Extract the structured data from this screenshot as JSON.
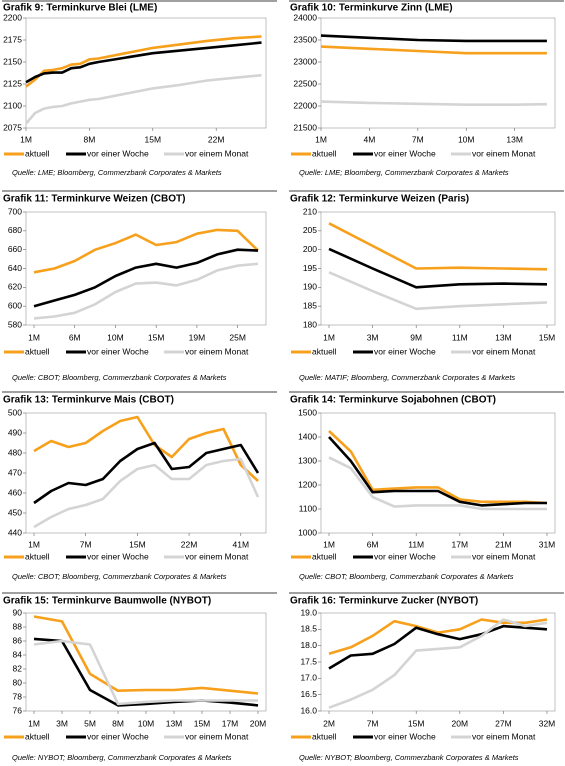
{
  "chart_data": [
    {
      "type": "line",
      "title": "Grafik 9: Terminkurve Blei (LME)",
      "source": "Quelle: LME; Bloomberg, Commerzbank Corporates & Markets",
      "x": [
        1,
        2,
        3,
        4,
        5,
        6,
        7,
        8,
        9,
        12,
        15,
        18,
        21,
        24,
        27
      ],
      "xlim": [
        1,
        27.5
      ],
      "xticks": [
        {
          "value": 1,
          "label": "1M"
        },
        {
          "value": 8,
          "label": "8M"
        },
        {
          "value": 15,
          "label": "15M"
        },
        {
          "value": 22,
          "label": "22M"
        }
      ],
      "ylim": [
        2075,
        2200
      ],
      "yticks": [
        2075,
        2100,
        2125,
        2150,
        2175,
        2200
      ],
      "series": [
        {
          "name": "aktuell",
          "color": "#f7a01c",
          "values": [
            2122,
            2130,
            2140,
            2141,
            2143,
            2147,
            2148,
            2153,
            2154,
            2160,
            2166,
            2170,
            2174,
            2177,
            2179
          ]
        },
        {
          "name": "vor einer Woche",
          "color": "#000000",
          "values": [
            2127,
            2133,
            2137,
            2138,
            2138,
            2143,
            2144,
            2148,
            2150,
            2155,
            2160,
            2163,
            2166,
            2169,
            2172
          ]
        },
        {
          "name": "vor einem Monat",
          "color": "#d4d4d4",
          "values": [
            2080,
            2092,
            2097,
            2099,
            2100,
            2103,
            2105,
            2107,
            2108,
            2114,
            2120,
            2124,
            2129,
            2132,
            2135
          ]
        }
      ]
    },
    {
      "type": "line",
      "title": "Grafik 10: Terminkurve Zinn (LME)",
      "source": "Quelle: LME; Bloomberg, Commerzbank Corporates & Markets",
      "x": [
        1,
        4,
        7,
        10,
        13,
        15
      ],
      "xlim": [
        1,
        15.5
      ],
      "xticks": [
        {
          "value": 1,
          "label": "1M"
        },
        {
          "value": 4,
          "label": "4M"
        },
        {
          "value": 7,
          "label": "7M"
        },
        {
          "value": 10,
          "label": "10M"
        },
        {
          "value": 13,
          "label": "13M"
        }
      ],
      "ylim": [
        21500,
        24000
      ],
      "yticks": [
        21500,
        22000,
        22500,
        23000,
        23500,
        24000
      ],
      "series": [
        {
          "name": "aktuell",
          "color": "#f7a01c",
          "values": [
            23350,
            23300,
            23250,
            23200,
            23200,
            23200
          ]
        },
        {
          "name": "vor einer Woche",
          "color": "#000000",
          "values": [
            23600,
            23550,
            23500,
            23480,
            23480,
            23480
          ]
        },
        {
          "name": "vor einem Monat",
          "color": "#d4d4d4",
          "values": [
            22100,
            22070,
            22050,
            22030,
            22030,
            22040
          ]
        }
      ]
    },
    {
      "type": "line",
      "title": "Grafik 11: Terminkurve Weizen (CBOT)",
      "source": "Quelle: CBOT; Bloomberg, Commerzbank Corporates & Markets",
      "categories": [
        "1M",
        null,
        "6M",
        null,
        "10M",
        null,
        "15M",
        null,
        "19M",
        null,
        "25M",
        null
      ],
      "ylim": [
        580,
        700
      ],
      "yticks": [
        580,
        600,
        620,
        640,
        660,
        680,
        700
      ],
      "series": [
        {
          "name": "aktuell",
          "color": "#f7a01c",
          "values": [
            636,
            640,
            648,
            660,
            667,
            676,
            665,
            668,
            677,
            681,
            680,
            659
          ]
        },
        {
          "name": "vor einer Woche",
          "color": "#000000",
          "values": [
            600,
            606,
            612,
            620,
            632,
            641,
            645,
            641,
            646,
            655,
            660,
            659
          ]
        },
        {
          "name": "vor einem Monat",
          "color": "#d4d4d4",
          "values": [
            587,
            589,
            593,
            602,
            615,
            624,
            625,
            622,
            628,
            638,
            643,
            645
          ]
        }
      ]
    },
    {
      "type": "line",
      "title": "Grafik 12: Terminkurve Weizen (Paris)",
      "source": "Quelle: MATIF; Bloomberg, Commerzbank Corporates & Markets",
      "categories": [
        "1M",
        "3M",
        "9M",
        "11M",
        "13M",
        "15M"
      ],
      "ylim": [
        180,
        210
      ],
      "yticks": [
        180,
        185,
        190,
        195,
        200,
        205,
        210
      ],
      "series": [
        {
          "name": "aktuell",
          "color": "#f7a01c",
          "values": [
            207,
            201,
            195,
            195.2,
            195,
            194.8
          ]
        },
        {
          "name": "vor einer Woche",
          "color": "#000000",
          "values": [
            200.2,
            195,
            190,
            190.8,
            191,
            190.8
          ]
        },
        {
          "name": "vor einem Monat",
          "color": "#d4d4d4",
          "values": [
            194,
            189,
            184.3,
            185,
            185.5,
            186
          ]
        }
      ]
    },
    {
      "type": "line",
      "title": "Grafik 13: Terminkurve Mais (CBOT)",
      "source": "Quelle: CBOT; Bloomberg, Commerzbank Corporates & Markets",
      "categories": [
        "1M",
        null,
        null,
        "7M",
        null,
        null,
        "15M",
        null,
        null,
        "22M",
        null,
        null,
        "41M",
        null
      ],
      "ylim": [
        440,
        500
      ],
      "yticks": [
        440,
        450,
        460,
        470,
        480,
        490,
        500
      ],
      "series": [
        {
          "name": "aktuell",
          "color": "#f7a01c",
          "values": [
            481,
            486,
            483,
            485,
            491,
            496,
            498,
            484,
            478,
            487,
            490,
            492,
            474,
            466
          ]
        },
        {
          "name": "vor einer Woche",
          "color": "#000000",
          "values": [
            455,
            461,
            465,
            464,
            467,
            476,
            482,
            485,
            472,
            473,
            480,
            482,
            484,
            470
          ]
        },
        {
          "name": "vor einem Monat",
          "color": "#d4d4d4",
          "values": [
            443,
            448,
            452,
            454,
            457,
            466,
            472,
            474,
            467,
            467,
            474,
            476,
            477,
            458
          ]
        }
      ]
    },
    {
      "type": "line",
      "title": "Grafik 14: Terminkurve Sojabohnen (CBOT)",
      "source": "Quelle: CBOT; Bloomberg, Commerzbank Corporates & Markets",
      "categories": [
        "1M",
        null,
        "6M",
        null,
        "11M",
        null,
        "17M",
        null,
        "21M",
        null,
        "31M"
      ],
      "ylim": [
        1000,
        1500
      ],
      "yticks": [
        1000,
        1100,
        1200,
        1300,
        1400,
        1500
      ],
      "series": [
        {
          "name": "aktuell",
          "color": "#f7a01c",
          "values": [
            1425,
            1340,
            1180,
            1185,
            1190,
            1190,
            1140,
            1130,
            1130,
            1130,
            1125
          ]
        },
        {
          "name": "vor einer Woche",
          "color": "#000000",
          "values": [
            1400,
            1300,
            1170,
            1175,
            1175,
            1175,
            1130,
            1115,
            1120,
            1125,
            1125
          ]
        },
        {
          "name": "vor einem Monat",
          "color": "#d4d4d4",
          "values": [
            1315,
            1270,
            1150,
            1110,
            1115,
            1115,
            1115,
            1100,
            1100,
            1100,
            1100
          ]
        }
      ]
    },
    {
      "type": "line",
      "title": "Grafik 15: Terminkurve Baumwolle (NYBOT)",
      "source": "Quelle: NYBOT; Bloomberg, Commerzbank Corporates & Markets",
      "categories": [
        "1M",
        "3M",
        "5M",
        "8M",
        "10M",
        "13M",
        "15M",
        "17M",
        "20M"
      ],
      "ylim": [
        76,
        90
      ],
      "yticks": [
        76,
        78,
        80,
        82,
        84,
        86,
        88,
        90
      ],
      "series": [
        {
          "name": "aktuell",
          "color": "#f7a01c",
          "values": [
            89.5,
            88.8,
            81.3,
            78.9,
            79,
            79,
            79.3,
            78.9,
            78.5
          ]
        },
        {
          "name": "vor einer Woche",
          "color": "#000000",
          "values": [
            86.3,
            86,
            79,
            76.8,
            77,
            77.3,
            77.5,
            77.2,
            76.8
          ]
        },
        {
          "name": "vor einem Monat",
          "color": "#d4d4d4",
          "values": [
            85.5,
            86,
            85.5,
            77,
            77.3,
            77.5,
            77.5,
            77.5,
            77.5
          ]
        }
      ]
    },
    {
      "type": "line",
      "title": "Grafik 16: Terminkurve Zucker (NYBOT)",
      "source": "Quelle: NYBOT; Bloomberg, Commerzbank Corporates & Markets",
      "categories": [
        "2M",
        null,
        "7M",
        null,
        "15M",
        null,
        "20M",
        null,
        "27M",
        null,
        "32M"
      ],
      "ylim": [
        16,
        19
      ],
      "yticks": [
        {
          "value": 16,
          "label": "16.0"
        },
        {
          "value": 16.5,
          "label": "16.5"
        },
        {
          "value": 17,
          "label": "17.0"
        },
        {
          "value": 17.5,
          "label": "17.5"
        },
        {
          "value": 18,
          "label": "18.0"
        },
        {
          "value": 18.5,
          "label": "18.5"
        },
        {
          "value": 19,
          "label": "19.0"
        }
      ],
      "series": [
        {
          "name": "aktuell",
          "color": "#f7a01c",
          "values": [
            17.75,
            17.95,
            18.3,
            18.75,
            18.6,
            18.4,
            18.5,
            18.8,
            18.7,
            18.7,
            18.8
          ]
        },
        {
          "name": "vor einer Woche",
          "color": "#000000",
          "values": [
            17.3,
            17.7,
            17.75,
            18.05,
            18.55,
            18.35,
            18.2,
            18.35,
            18.6,
            18.55,
            18.5
          ]
        },
        {
          "name": "vor einem Monat",
          "color": "#d4d4d4",
          "values": [
            16.1,
            16.35,
            16.65,
            17.1,
            17.85,
            17.9,
            17.95,
            18.3,
            18.8,
            18.6,
            18.7
          ]
        }
      ]
    }
  ]
}
